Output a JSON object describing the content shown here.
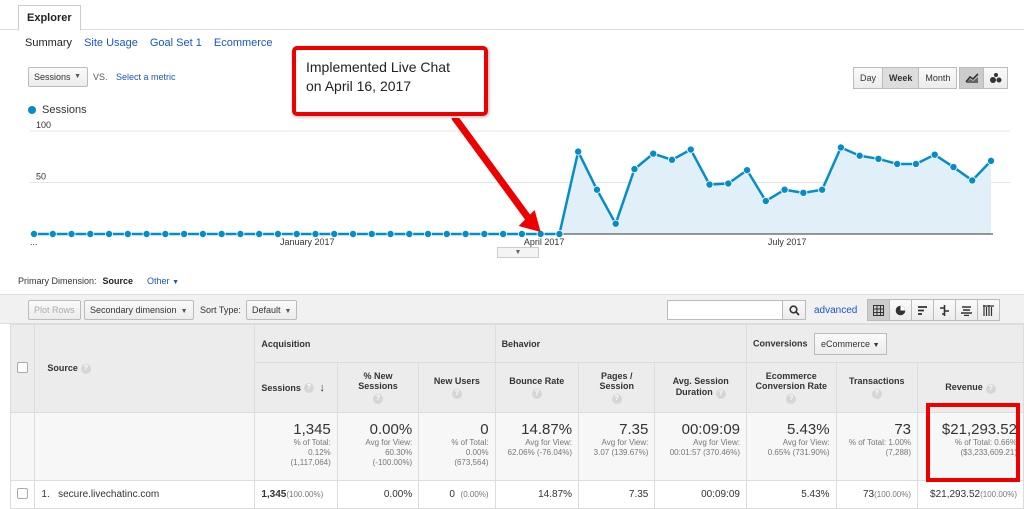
{
  "tabs": {
    "explorer": "Explorer"
  },
  "subnav": {
    "summary": "Summary",
    "site_usage": "Site Usage",
    "goal_set": "Goal Set 1",
    "ecommerce": "Ecommerce"
  },
  "metric_controls": {
    "metric": "Sessions",
    "vs": "VS.",
    "select_metric": "Select a metric"
  },
  "granularity": {
    "day": "Day",
    "week": "Week",
    "month": "Month"
  },
  "annotation": {
    "line1": "Implemented Live Chat",
    "line2": "on April 16, 2017"
  },
  "chart_data": {
    "type": "line",
    "legend": "Sessions",
    "y_ticks": [
      "100",
      "50"
    ],
    "ylim": [
      0,
      100
    ],
    "x_labels": [
      "...",
      "January 2017",
      "April 2017",
      "July 2017"
    ],
    "series": [
      {
        "name": "Sessions",
        "values": [
          0,
          0,
          0,
          0,
          0,
          0,
          0,
          0,
          0,
          0,
          0,
          0,
          0,
          0,
          0,
          0,
          0,
          0,
          0,
          0,
          0,
          0,
          0,
          0,
          0,
          0,
          0,
          0,
          0,
          80,
          43,
          10,
          63,
          78,
          72,
          82,
          48,
          49,
          62,
          32,
          43,
          40,
          43,
          84,
          76,
          73,
          68,
          68,
          77,
          65,
          52,
          71
        ]
      }
    ],
    "colors": {
      "line": "#058dc7",
      "fill": "#e1f0f8"
    },
    "grid": true
  },
  "primary_dimension": {
    "label": "Primary Dimension:",
    "current": "Source",
    "other": "Other"
  },
  "toolbar": {
    "plot_rows": "Plot Rows",
    "secondary_dimension": "Secondary dimension",
    "sort_type_label": "Sort Type:",
    "sort_type": "Default",
    "advanced": "advanced"
  },
  "table": {
    "groups": {
      "source": "Source",
      "acquisition": "Acquisition",
      "behavior": "Behavior",
      "conversions": "Conversions",
      "conversions_select": "eCommerce"
    },
    "columns": {
      "sessions": "Sessions",
      "new_sessions": "% New Sessions",
      "new_users": "New Users",
      "bounce_rate": "Bounce Rate",
      "pages_session": "Pages / Session",
      "avg_duration_1": "Avg. Session",
      "avg_duration_2": "Duration",
      "ecom_rate_1": "Ecommerce",
      "ecom_rate_2": "Conversion Rate",
      "transactions": "Transactions",
      "revenue": "Revenue"
    },
    "totals": {
      "sessions": {
        "value": "1,345",
        "sub1": "% of Total:",
        "sub2": "0.12%",
        "sub3": "(1,117,064)"
      },
      "new_sessions": {
        "value": "0.00%",
        "sub1": "Avg for View:",
        "sub2": "60.30%",
        "sub3": "(-100.00%)"
      },
      "new_users": {
        "value": "0",
        "sub1": "% of Total:",
        "sub2": "0.00%",
        "sub3": "(673,564)"
      },
      "bounce_rate": {
        "value": "14.87%",
        "sub1": "Avg for View:",
        "sub2": "62.06% (-76.04%)"
      },
      "pages_session": {
        "value": "7.35",
        "sub1": "Avg for View:",
        "sub2": "3.07 (139.67%)"
      },
      "avg_duration": {
        "value": "00:09:09",
        "sub1": "Avg for View:",
        "sub2": "00:01:57 (370.46%)"
      },
      "ecom_rate": {
        "value": "5.43%",
        "sub1": "Avg for View:",
        "sub2": "0.65% (731.90%)"
      },
      "transactions": {
        "value": "73",
        "sub1": "% of Total: 1.00%",
        "sub2": "(7,288)"
      },
      "revenue": {
        "value": "$21,293.52",
        "sub1": "% of Total: 0.66%",
        "sub2": "($3,233,609.21)"
      }
    },
    "rows": [
      {
        "index": "1.",
        "source": "secure.livechatinc.com",
        "sessions": "1,345",
        "sessions_pct": "(100.00%)",
        "new_sessions": "0.00%",
        "new_users": "0",
        "new_users_pct": "(0.00%)",
        "bounce_rate": "14.87%",
        "pages_session": "7.35",
        "avg_duration": "00:09:09",
        "ecom_rate": "5.43%",
        "transactions": "73",
        "transactions_pct": "(100.00%)",
        "revenue": "$21,293.52",
        "revenue_pct": "(100.00%)"
      }
    ]
  }
}
